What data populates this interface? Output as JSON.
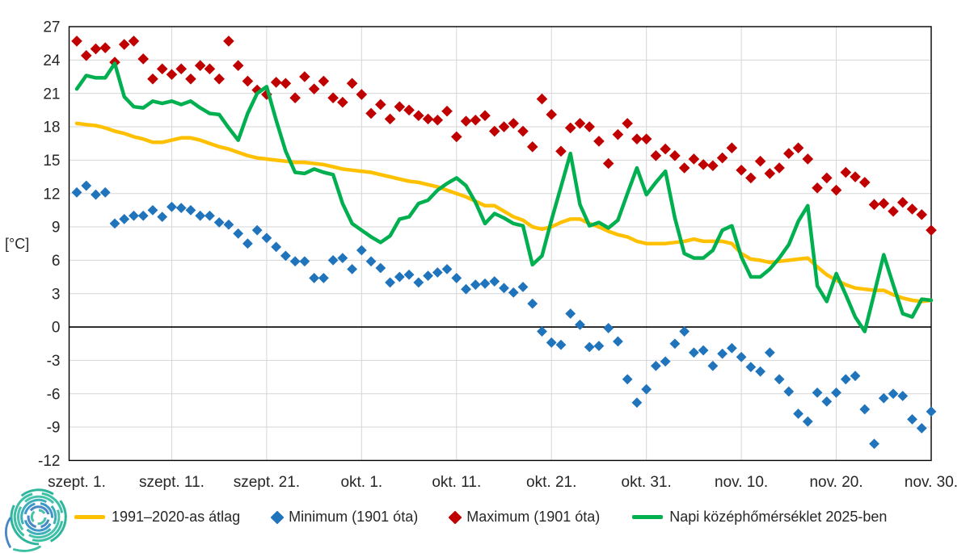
{
  "y_axis": {
    "unit_label": "[°C]",
    "ticks": [
      27,
      24,
      21,
      18,
      15,
      12,
      9,
      6,
      3,
      0,
      -3,
      -6,
      -9,
      -12
    ]
  },
  "colors": {
    "grid": "#D6D6D6",
    "frame": "#000000",
    "zero_line": "#000000",
    "axis_text": "#262626",
    "avg": "#FFC000",
    "min": "#2074BC",
    "max": "#C00000",
    "daily": "#00B050"
  },
  "logo": {
    "name": "hungaromet-spiral-logo",
    "colors": [
      "#2FB59C",
      "#3CBFA4",
      "#45C3AB",
      "#3FAEBB",
      "#3E97C9",
      "#4A86C6"
    ]
  },
  "chart_data": {
    "type": "line",
    "title": "",
    "xlabel": "",
    "ylabel": "[°C]",
    "ylim": [
      -12,
      27
    ],
    "y_step": 3,
    "grid": true,
    "legend_position": "bottom",
    "x_description": "Daily values, Sept 1 - Nov 30 (91 days), ticks every 10 days",
    "x_tick_labels": [
      "szept. 1.",
      "szept. 11.",
      "szept. 21.",
      "okt. 1.",
      "okt. 11.",
      "okt. 21.",
      "okt. 31.",
      "nov. 10.",
      "nov. 20.",
      "nov. 30."
    ],
    "x_tick_positions": [
      0,
      10,
      20,
      30,
      40,
      50,
      60,
      70,
      80,
      90
    ],
    "series": [
      {
        "key": "avg",
        "name": "1991–2020-as átlag",
        "type": "line",
        "color": "#FFC000",
        "values": [
          18.3,
          18.2,
          18.1,
          17.9,
          17.6,
          17.4,
          17.1,
          16.9,
          16.6,
          16.6,
          16.8,
          17.0,
          17.0,
          16.8,
          16.5,
          16.2,
          16.0,
          15.7,
          15.4,
          15.2,
          15.1,
          15.0,
          14.9,
          14.8,
          14.8,
          14.7,
          14.6,
          14.4,
          14.2,
          14.1,
          14.0,
          13.9,
          13.7,
          13.5,
          13.3,
          13.1,
          13.0,
          12.8,
          12.6,
          12.3,
          12.0,
          11.7,
          11.3,
          10.9,
          10.9,
          10.4,
          9.9,
          9.6,
          9.0,
          8.8,
          9.0,
          9.4,
          9.7,
          9.7,
          9.3,
          9.0,
          8.6,
          8.3,
          8.1,
          7.7,
          7.5,
          7.5,
          7.5,
          7.6,
          7.7,
          7.9,
          7.7,
          7.7,
          7.7,
          7.5,
          6.6,
          6.1,
          6.0,
          5.8,
          5.9,
          6.0,
          6.1,
          6.2,
          5.4,
          4.7,
          4.2,
          3.8,
          3.5,
          3.4,
          3.3,
          3.3,
          2.9,
          2.6,
          2.4,
          2.3,
          2.4
        ]
      },
      {
        "key": "min",
        "name": "Minimum (1901 óta)",
        "type": "scatter",
        "marker": "diamond",
        "color": "#2074BC",
        "values": [
          12.1,
          12.7,
          11.9,
          12.1,
          9.3,
          9.7,
          10.0,
          10.0,
          10.5,
          9.9,
          10.8,
          10.7,
          10.5,
          10.0,
          10.0,
          9.4,
          9.2,
          8.4,
          7.5,
          8.7,
          8.0,
          7.2,
          6.4,
          5.9,
          5.9,
          4.4,
          4.4,
          6.0,
          6.2,
          5.2,
          6.9,
          5.9,
          5.3,
          4.0,
          4.5,
          4.7,
          4.0,
          4.6,
          4.9,
          5.2,
          4.4,
          3.4,
          3.8,
          3.9,
          4.1,
          3.5,
          3.1,
          3.6,
          2.1,
          -0.4,
          -1.4,
          -1.6,
          1.2,
          0.2,
          -1.8,
          -1.7,
          -0.1,
          -1.3,
          -4.7,
          -6.8,
          -5.6,
          -3.5,
          -3.1,
          -1.5,
          -0.4,
          -2.3,
          -2.1,
          -3.5,
          -2.4,
          -1.9,
          -2.7,
          -3.6,
          -4.0,
          -2.3,
          -4.7,
          -5.8,
          -7.8,
          -8.5,
          -5.9,
          -6.7,
          -5.9,
          -4.7,
          -4.4,
          -7.4,
          -10.5,
          -6.4,
          -6.0,
          -6.2,
          -8.3,
          -9.1,
          -7.6
        ]
      },
      {
        "key": "max",
        "name": "Maximum (1901 óta)",
        "type": "scatter",
        "marker": "diamond",
        "color": "#C00000",
        "values": [
          25.7,
          24.4,
          25.0,
          25.1,
          23.8,
          25.4,
          25.7,
          24.1,
          22.3,
          23.2,
          22.7,
          23.2,
          22.3,
          23.5,
          23.2,
          22.3,
          25.7,
          23.5,
          22.1,
          21.3,
          20.9,
          22.0,
          21.9,
          20.6,
          22.5,
          21.4,
          22.1,
          20.6,
          20.2,
          21.9,
          20.9,
          19.2,
          20.0,
          18.7,
          19.8,
          19.5,
          19.0,
          18.7,
          18.6,
          19.4,
          17.1,
          18.5,
          18.6,
          19.0,
          17.6,
          18.0,
          18.3,
          17.6,
          16.2,
          20.5,
          19.1,
          15.8,
          17.9,
          18.3,
          18.0,
          16.7,
          14.7,
          17.3,
          18.3,
          16.9,
          16.9,
          15.4,
          16.0,
          15.4,
          14.3,
          15.1,
          14.6,
          14.5,
          15.2,
          16.1,
          14.1,
          13.4,
          14.9,
          13.8,
          14.3,
          15.6,
          16.1,
          15.1,
          12.5,
          13.4,
          12.3,
          13.9,
          13.5,
          13.0,
          11.0,
          11.1,
          10.4,
          11.2,
          10.6,
          10.1,
          8.7
        ]
      },
      {
        "key": "daily",
        "name": "Napi középhőmérséklet 2025-ben",
        "type": "line",
        "color": "#00B050",
        "values": [
          21.4,
          22.6,
          22.4,
          22.4,
          23.7,
          20.7,
          19.8,
          19.7,
          20.3,
          20.1,
          20.3,
          20.0,
          20.3,
          19.7,
          19.2,
          19.1,
          17.9,
          16.8,
          19.2,
          21.0,
          21.6,
          18.6,
          15.8,
          13.9,
          13.8,
          14.2,
          13.9,
          13.7,
          11.1,
          9.3,
          8.7,
          8.1,
          7.6,
          8.2,
          9.7,
          9.9,
          11.1,
          11.4,
          12.3,
          12.9,
          13.4,
          12.7,
          11.2,
          9.3,
          10.2,
          9.8,
          9.3,
          9.1,
          5.6,
          6.4,
          9.6,
          12.6,
          15.6,
          11.0,
          9.1,
          9.4,
          8.9,
          9.6,
          12.0,
          14.3,
          11.9,
          13.0,
          14.0,
          9.8,
          6.6,
          6.2,
          6.2,
          6.9,
          8.7,
          9.1,
          6.3,
          4.5,
          4.5,
          5.2,
          6.2,
          7.4,
          9.5,
          10.9,
          3.7,
          2.3,
          4.8,
          2.9,
          0.9,
          -0.4,
          3.0,
          6.5,
          3.8,
          1.2,
          0.9,
          2.5,
          2.4
        ]
      }
    ]
  }
}
